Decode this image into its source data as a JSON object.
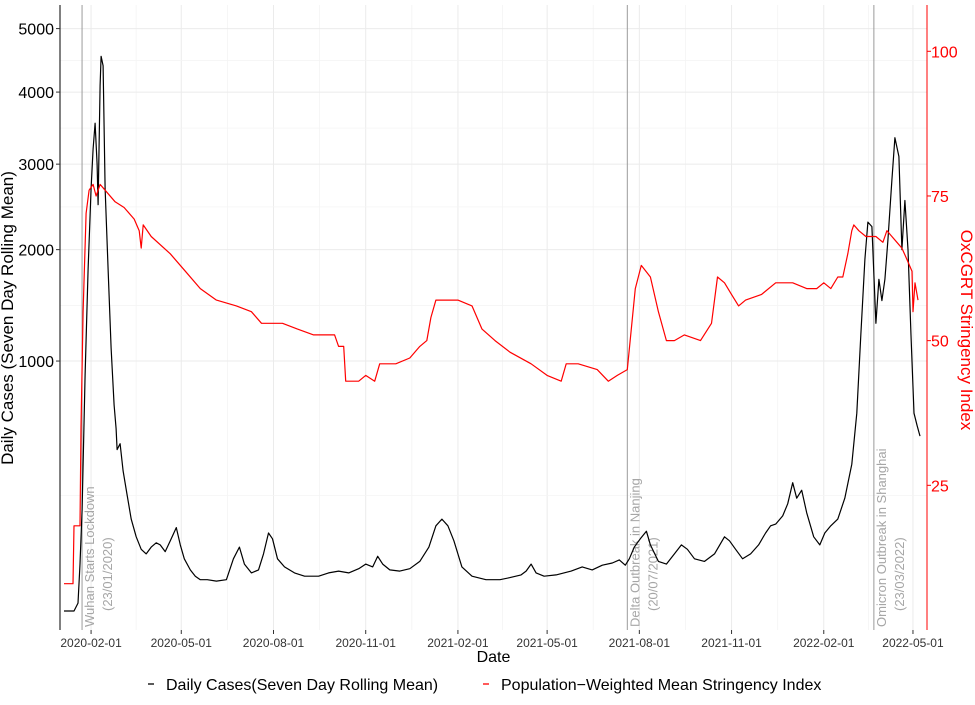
{
  "chart_data": {
    "type": "line",
    "title": "",
    "xlabel": "Date",
    "ylabel_left": "Daily Cases (Seven Day Rolling Mean)",
    "ylabel_right": "OxCGRT Stringency Index",
    "x_ticks": [
      "2020-02-01",
      "2020-05-01",
      "2020-08-01",
      "2020-11-01",
      "2021-02-01",
      "2021-05-01",
      "2021-08-01",
      "2021-11-01",
      "2022-02-01",
      "2022-05-01"
    ],
    "y_left_ticks": [
      "1000",
      "2000",
      "3000",
      "4000",
      "5000"
    ],
    "y_right_ticks": [
      "25",
      "50",
      "75",
      "100"
    ],
    "y_left_scale": "sqrt",
    "y_left_range": [
      0,
      5400
    ],
    "y_right_range": [
      0,
      108
    ],
    "x_range": [
      "2020-01-01",
      "2022-05-15"
    ],
    "grid": true,
    "legend_position": "bottom",
    "legend": [
      {
        "label": "Daily Cases(Seven Day Rolling Mean)",
        "color": "#000000"
      },
      {
        "label": "Population−Weighted Mean Stringency Index",
        "color": "#ff0000"
      }
    ],
    "annotations": [
      {
        "date": "2020-01-23",
        "line1": "Wuhan Starts Lockdown",
        "line2": "(23/01/2020)"
      },
      {
        "date": "2021-07-20",
        "line1": "Delta Outbreak in Nanjing",
        "line2": "(20/07/2021)"
      },
      {
        "date": "2022-03-23",
        "line1": "Omicron Outbreak in Shanghai",
        "line2": "(23/03/2022)"
      }
    ],
    "series": [
      {
        "name": "Daily Cases(Seven Day Rolling Mean)",
        "color": "#000000",
        "axis": "left",
        "points": [
          [
            "2020-01-05",
            5
          ],
          [
            "2020-01-15",
            5
          ],
          [
            "2020-01-19",
            10
          ],
          [
            "2020-01-21",
            60
          ],
          [
            "2020-01-23",
            200
          ],
          [
            "2020-01-26",
            900
          ],
          [
            "2020-01-29",
            1800
          ],
          [
            "2020-02-01",
            2700
          ],
          [
            "2020-02-03",
            3200
          ],
          [
            "2020-02-05",
            3550
          ],
          [
            "2020-02-07",
            3000
          ],
          [
            "2020-02-08",
            2500
          ],
          [
            "2020-02-10",
            4100
          ],
          [
            "2020-02-11",
            4550
          ],
          [
            "2020-02-13",
            4400
          ],
          [
            "2020-02-15",
            2700
          ],
          [
            "2020-02-18",
            1800
          ],
          [
            "2020-02-21",
            1100
          ],
          [
            "2020-02-24",
            700
          ],
          [
            "2020-02-26",
            560
          ],
          [
            "2020-02-27",
            450
          ],
          [
            "2020-03-01",
            480
          ],
          [
            "2020-03-04",
            350
          ],
          [
            "2020-03-08",
            250
          ],
          [
            "2020-03-12",
            170
          ],
          [
            "2020-03-17",
            120
          ],
          [
            "2020-03-22",
            90
          ],
          [
            "2020-03-27",
            80
          ],
          [
            "2020-04-01",
            95
          ],
          [
            "2020-04-06",
            105
          ],
          [
            "2020-04-10",
            100
          ],
          [
            "2020-04-15",
            85
          ],
          [
            "2020-04-20",
            110
          ],
          [
            "2020-04-26",
            145
          ],
          [
            "2020-04-30",
            100
          ],
          [
            "2020-05-04",
            70
          ],
          [
            "2020-05-10",
            50
          ],
          [
            "2020-05-15",
            40
          ],
          [
            "2020-05-20",
            35
          ],
          [
            "2020-05-27",
            35
          ],
          [
            "2020-06-05",
            33
          ],
          [
            "2020-06-15",
            35
          ],
          [
            "2020-06-22",
            70
          ],
          [
            "2020-06-28",
            95
          ],
          [
            "2020-07-03",
            60
          ],
          [
            "2020-07-10",
            45
          ],
          [
            "2020-07-17",
            50
          ],
          [
            "2020-07-22",
            80
          ],
          [
            "2020-07-27",
            130
          ],
          [
            "2020-07-31",
            115
          ],
          [
            "2020-08-05",
            70
          ],
          [
            "2020-08-12",
            55
          ],
          [
            "2020-08-22",
            45
          ],
          [
            "2020-09-01",
            40
          ],
          [
            "2020-09-15",
            40
          ],
          [
            "2020-09-25",
            45
          ],
          [
            "2020-10-05",
            48
          ],
          [
            "2020-10-15",
            45
          ],
          [
            "2020-10-25",
            52
          ],
          [
            "2020-11-01",
            60
          ],
          [
            "2020-11-08",
            55
          ],
          [
            "2020-11-13",
            75
          ],
          [
            "2020-11-18",
            60
          ],
          [
            "2020-11-25",
            50
          ],
          [
            "2020-12-05",
            48
          ],
          [
            "2020-12-15",
            52
          ],
          [
            "2020-12-25",
            65
          ],
          [
            "2021-01-03",
            95
          ],
          [
            "2021-01-10",
            150
          ],
          [
            "2021-01-16",
            170
          ],
          [
            "2021-01-22",
            150
          ],
          [
            "2021-01-28",
            110
          ],
          [
            "2021-02-05",
            55
          ],
          [
            "2021-02-15",
            40
          ],
          [
            "2021-03-01",
            35
          ],
          [
            "2021-03-15",
            35
          ],
          [
            "2021-03-25",
            38
          ],
          [
            "2021-04-05",
            42
          ],
          [
            "2021-04-10",
            48
          ],
          [
            "2021-04-15",
            60
          ],
          [
            "2021-04-20",
            45
          ],
          [
            "2021-04-28",
            40
          ],
          [
            "2021-05-10",
            42
          ],
          [
            "2021-05-25",
            48
          ],
          [
            "2021-06-05",
            55
          ],
          [
            "2021-06-15",
            50
          ],
          [
            "2021-06-25",
            58
          ],
          [
            "2021-07-05",
            62
          ],
          [
            "2021-07-12",
            68
          ],
          [
            "2021-07-18",
            58
          ],
          [
            "2021-07-22",
            70
          ],
          [
            "2021-07-27",
            95
          ],
          [
            "2021-08-02",
            115
          ],
          [
            "2021-08-08",
            135
          ],
          [
            "2021-08-12",
            100
          ],
          [
            "2021-08-20",
            65
          ],
          [
            "2021-08-28",
            60
          ],
          [
            "2021-09-05",
            80
          ],
          [
            "2021-09-12",
            100
          ],
          [
            "2021-09-18",
            90
          ],
          [
            "2021-09-25",
            70
          ],
          [
            "2021-10-05",
            65
          ],
          [
            "2021-10-15",
            80
          ],
          [
            "2021-10-25",
            120
          ],
          [
            "2021-10-30",
            110
          ],
          [
            "2021-11-05",
            90
          ],
          [
            "2021-11-12",
            70
          ],
          [
            "2021-11-20",
            80
          ],
          [
            "2021-11-28",
            100
          ],
          [
            "2021-12-05",
            130
          ],
          [
            "2021-12-10",
            150
          ],
          [
            "2021-12-15",
            155
          ],
          [
            "2021-12-22",
            180
          ],
          [
            "2021-12-27",
            220
          ],
          [
            "2022-01-01",
            300
          ],
          [
            "2022-01-05",
            240
          ],
          [
            "2022-01-10",
            270
          ],
          [
            "2022-01-15",
            190
          ],
          [
            "2022-01-22",
            120
          ],
          [
            "2022-01-28",
            100
          ],
          [
            "2022-02-02",
            130
          ],
          [
            "2022-02-08",
            150
          ],
          [
            "2022-02-15",
            170
          ],
          [
            "2022-02-22",
            240
          ],
          [
            "2022-03-01",
            380
          ],
          [
            "2022-03-06",
            650
          ],
          [
            "2022-03-10",
            1200
          ],
          [
            "2022-03-14",
            1900
          ],
          [
            "2022-03-17",
            2300
          ],
          [
            "2022-03-21",
            2250
          ],
          [
            "2022-03-25",
            1300
          ],
          [
            "2022-03-28",
            1700
          ],
          [
            "2022-03-31",
            1500
          ],
          [
            "2022-04-03",
            1700
          ],
          [
            "2022-04-06",
            2100
          ],
          [
            "2022-04-10",
            2800
          ],
          [
            "2022-04-13",
            3350
          ],
          [
            "2022-04-17",
            3100
          ],
          [
            "2022-04-20",
            2000
          ],
          [
            "2022-04-23",
            2550
          ],
          [
            "2022-04-26",
            2000
          ],
          [
            "2022-04-29",
            1200
          ],
          [
            "2022-05-02",
            650
          ],
          [
            "2022-05-05",
            580
          ],
          [
            "2022-05-08",
            520
          ]
        ]
      },
      {
        "name": "Population−Weighted Mean Stringency Index",
        "color": "#ff0000",
        "axis": "right",
        "points": [
          [
            "2020-01-05",
            8
          ],
          [
            "2020-01-14",
            8
          ],
          [
            "2020-01-15",
            18
          ],
          [
            "2020-01-21",
            18
          ],
          [
            "2020-01-22",
            35
          ],
          [
            "2020-01-24",
            55
          ],
          [
            "2020-01-27",
            72
          ],
          [
            "2020-01-30",
            76
          ],
          [
            "2020-02-03",
            77
          ],
          [
            "2020-02-06",
            75
          ],
          [
            "2020-02-10",
            77
          ],
          [
            "2020-02-15",
            76
          ],
          [
            "2020-02-25",
            74
          ],
          [
            "2020-03-05",
            73
          ],
          [
            "2020-03-15",
            71
          ],
          [
            "2020-03-20",
            69
          ],
          [
            "2020-03-22",
            66
          ],
          [
            "2020-03-24",
            70
          ],
          [
            "2020-04-01",
            68
          ],
          [
            "2020-04-20",
            65
          ],
          [
            "2020-05-05",
            62
          ],
          [
            "2020-05-20",
            59
          ],
          [
            "2020-06-05",
            57
          ],
          [
            "2020-06-25",
            56
          ],
          [
            "2020-07-10",
            55
          ],
          [
            "2020-07-20",
            53
          ],
          [
            "2020-08-10",
            53
          ],
          [
            "2020-08-25",
            52
          ],
          [
            "2020-09-10",
            51
          ],
          [
            "2020-10-01",
            51
          ],
          [
            "2020-10-05",
            49
          ],
          [
            "2020-10-10",
            49
          ],
          [
            "2020-10-12",
            43
          ],
          [
            "2020-10-25",
            43
          ],
          [
            "2020-11-01",
            44
          ],
          [
            "2020-11-10",
            43
          ],
          [
            "2020-11-15",
            46
          ],
          [
            "2020-12-01",
            46
          ],
          [
            "2020-12-15",
            47
          ],
          [
            "2020-12-25",
            49
          ],
          [
            "2021-01-01",
            50
          ],
          [
            "2021-01-05",
            54
          ],
          [
            "2021-01-10",
            57
          ],
          [
            "2021-01-20",
            57
          ],
          [
            "2021-02-01",
            57
          ],
          [
            "2021-02-15",
            56
          ],
          [
            "2021-02-25",
            52
          ],
          [
            "2021-03-10",
            50
          ],
          [
            "2021-03-25",
            48
          ],
          [
            "2021-04-15",
            46
          ],
          [
            "2021-05-01",
            44
          ],
          [
            "2021-05-15",
            43
          ],
          [
            "2021-05-20",
            46
          ],
          [
            "2021-06-01",
            46
          ],
          [
            "2021-06-20",
            45
          ],
          [
            "2021-07-01",
            43
          ],
          [
            "2021-07-10",
            44
          ],
          [
            "2021-07-20",
            45
          ],
          [
            "2021-07-24",
            52
          ],
          [
            "2021-07-28",
            59
          ],
          [
            "2021-08-03",
            63
          ],
          [
            "2021-08-12",
            61
          ],
          [
            "2021-08-20",
            55
          ],
          [
            "2021-08-28",
            50
          ],
          [
            "2021-09-05",
            50
          ],
          [
            "2021-09-15",
            51
          ],
          [
            "2021-10-01",
            50
          ],
          [
            "2021-10-12",
            53
          ],
          [
            "2021-10-18",
            61
          ],
          [
            "2021-10-25",
            60
          ],
          [
            "2021-11-01",
            58
          ],
          [
            "2021-11-08",
            56
          ],
          [
            "2021-11-15",
            57
          ],
          [
            "2021-12-01",
            58
          ],
          [
            "2021-12-15",
            60
          ],
          [
            "2022-01-01",
            60
          ],
          [
            "2022-01-15",
            59
          ],
          [
            "2022-01-25",
            59
          ],
          [
            "2022-02-01",
            60
          ],
          [
            "2022-02-08",
            59
          ],
          [
            "2022-02-15",
            61
          ],
          [
            "2022-02-20",
            61
          ],
          [
            "2022-02-25",
            65
          ],
          [
            "2022-03-01",
            69
          ],
          [
            "2022-03-03",
            70
          ],
          [
            "2022-03-08",
            69
          ],
          [
            "2022-03-15",
            68
          ],
          [
            "2022-03-25",
            68
          ],
          [
            "2022-04-01",
            67
          ],
          [
            "2022-04-05",
            69
          ],
          [
            "2022-04-10",
            68
          ],
          [
            "2022-04-15",
            67
          ],
          [
            "2022-04-20",
            66
          ],
          [
            "2022-04-25",
            64
          ],
          [
            "2022-04-30",
            62
          ],
          [
            "2022-05-01",
            55
          ],
          [
            "2022-05-03",
            60
          ],
          [
            "2022-05-06",
            57
          ]
        ]
      }
    ]
  }
}
